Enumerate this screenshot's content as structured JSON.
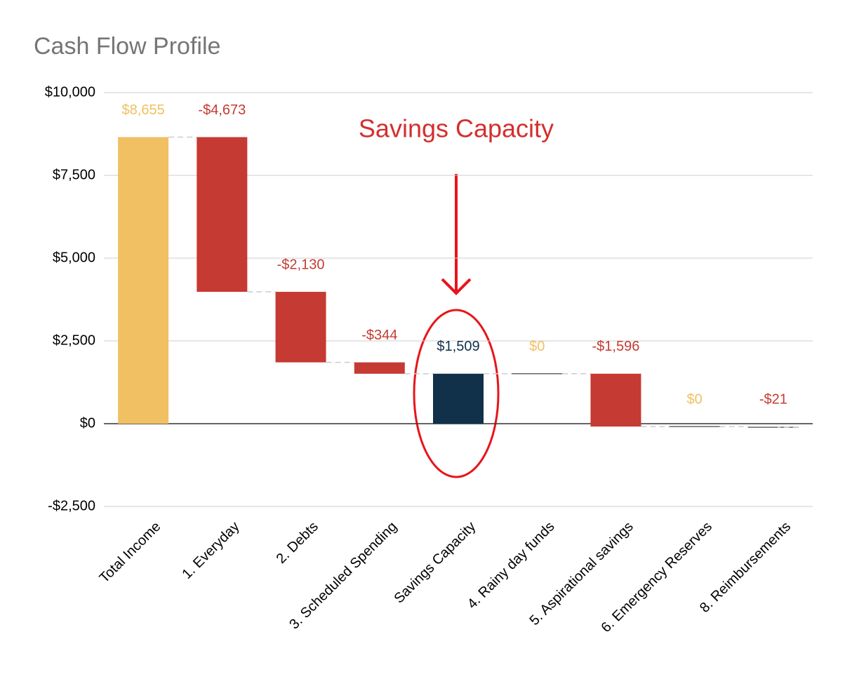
{
  "chart_data": {
    "type": "waterfall",
    "title": "Cash Flow Profile",
    "annotation": "Savings Capacity",
    "categories": [
      "Total Income",
      "1. Everyday",
      "2. Debts",
      "3. Scheduled Spending",
      "Savings Capacity",
      "4. Rainy day funds",
      "5. Aspirational savings",
      "6. Emergency Reserves",
      "8. Reimbursements"
    ],
    "values": [
      8655,
      -4673,
      -2130,
      -344,
      1509,
      0,
      -1596,
      0,
      -21
    ],
    "value_labels": [
      "$8,655",
      "-$4,673",
      "-$2,130",
      "-$344",
      "$1,509",
      "$0",
      "-$1,596",
      "$0",
      "-$21"
    ],
    "total_indices": [
      4
    ],
    "increase_color": "#f1c062",
    "decrease_color": "#c53a32",
    "total_color": "#11304a",
    "ylim": [
      -2500,
      10000
    ],
    "yticks": [
      {
        "value": -2500,
        "label": "-$2,500"
      },
      {
        "value": 0,
        "label": "$0"
      },
      {
        "value": 2500,
        "label": "$2,500"
      },
      {
        "value": 5000,
        "label": "$5,000"
      },
      {
        "value": 7500,
        "label": "$7,500"
      },
      {
        "value": 10000,
        "label": "$10,000"
      }
    ],
    "grid": true
  }
}
